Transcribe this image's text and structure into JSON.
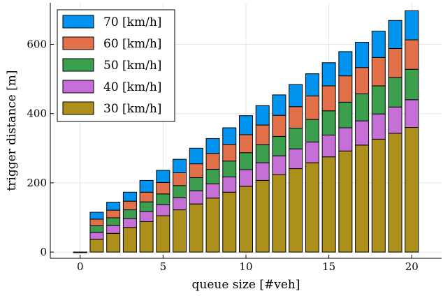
{
  "chart_data": {
    "type": "bar",
    "stacked": true,
    "xlabel": "queue size [#veh]",
    "ylabel": "trigger distance [m]",
    "xlim": [
      -1.8,
      21.8
    ],
    "ylim": [
      -18,
      720
    ],
    "xticks": [
      0,
      5,
      10,
      15,
      20
    ],
    "yticks": [
      0,
      200,
      400,
      600
    ],
    "grid": true,
    "legend_position": "top-left",
    "x": [
      0,
      1,
      2,
      3,
      4,
      5,
      6,
      7,
      8,
      9,
      10,
      11,
      12,
      13,
      14,
      15,
      16,
      17,
      18,
      19,
      20
    ],
    "series": [
      {
        "name": "30 [km/h]",
        "color": "#ad8f1c",
        "values": [
          0,
          37,
          54,
          71,
          88,
          105,
          122,
          139,
          156,
          173,
          190,
          207,
          224,
          241,
          258,
          275,
          292,
          309,
          326,
          343,
          360
        ]
      },
      {
        "name": "40 [km/h]",
        "color": "#c66fd6",
        "values": [
          0,
          20,
          23,
          26,
          29,
          32,
          35,
          38,
          41,
          44,
          48,
          51,
          54,
          57,
          60,
          63,
          67,
          70,
          73,
          76,
          80
        ]
      },
      {
        "name": "50 [km/h]",
        "color": "#3b9f4d",
        "values": [
          0,
          19,
          22,
          25,
          28,
          31,
          35,
          38,
          42,
          46,
          49,
          52,
          56,
          60,
          65,
          70,
          74,
          78,
          81,
          85,
          88
        ]
      },
      {
        "name": "60 [km/h]",
        "color": "#e2714a",
        "values": [
          0,
          19,
          22,
          25,
          28,
          33,
          37,
          40,
          46,
          48,
          52,
          57,
          61,
          62,
          68,
          72,
          76,
          76,
          82,
          84,
          85
        ]
      },
      {
        "name": "70 [km/h]",
        "color": "#0094f0",
        "values": [
          0,
          20,
          23,
          26,
          34,
          35,
          39,
          45,
          43,
          48,
          55,
          56,
          59,
          64,
          64,
          67,
          70,
          73,
          76,
          81,
          84
        ]
      }
    ],
    "legend_order": [
      "70 [km/h]",
      "60 [km/h]",
      "50 [km/h]",
      "40 [km/h]",
      "30 [km/h]"
    ]
  }
}
